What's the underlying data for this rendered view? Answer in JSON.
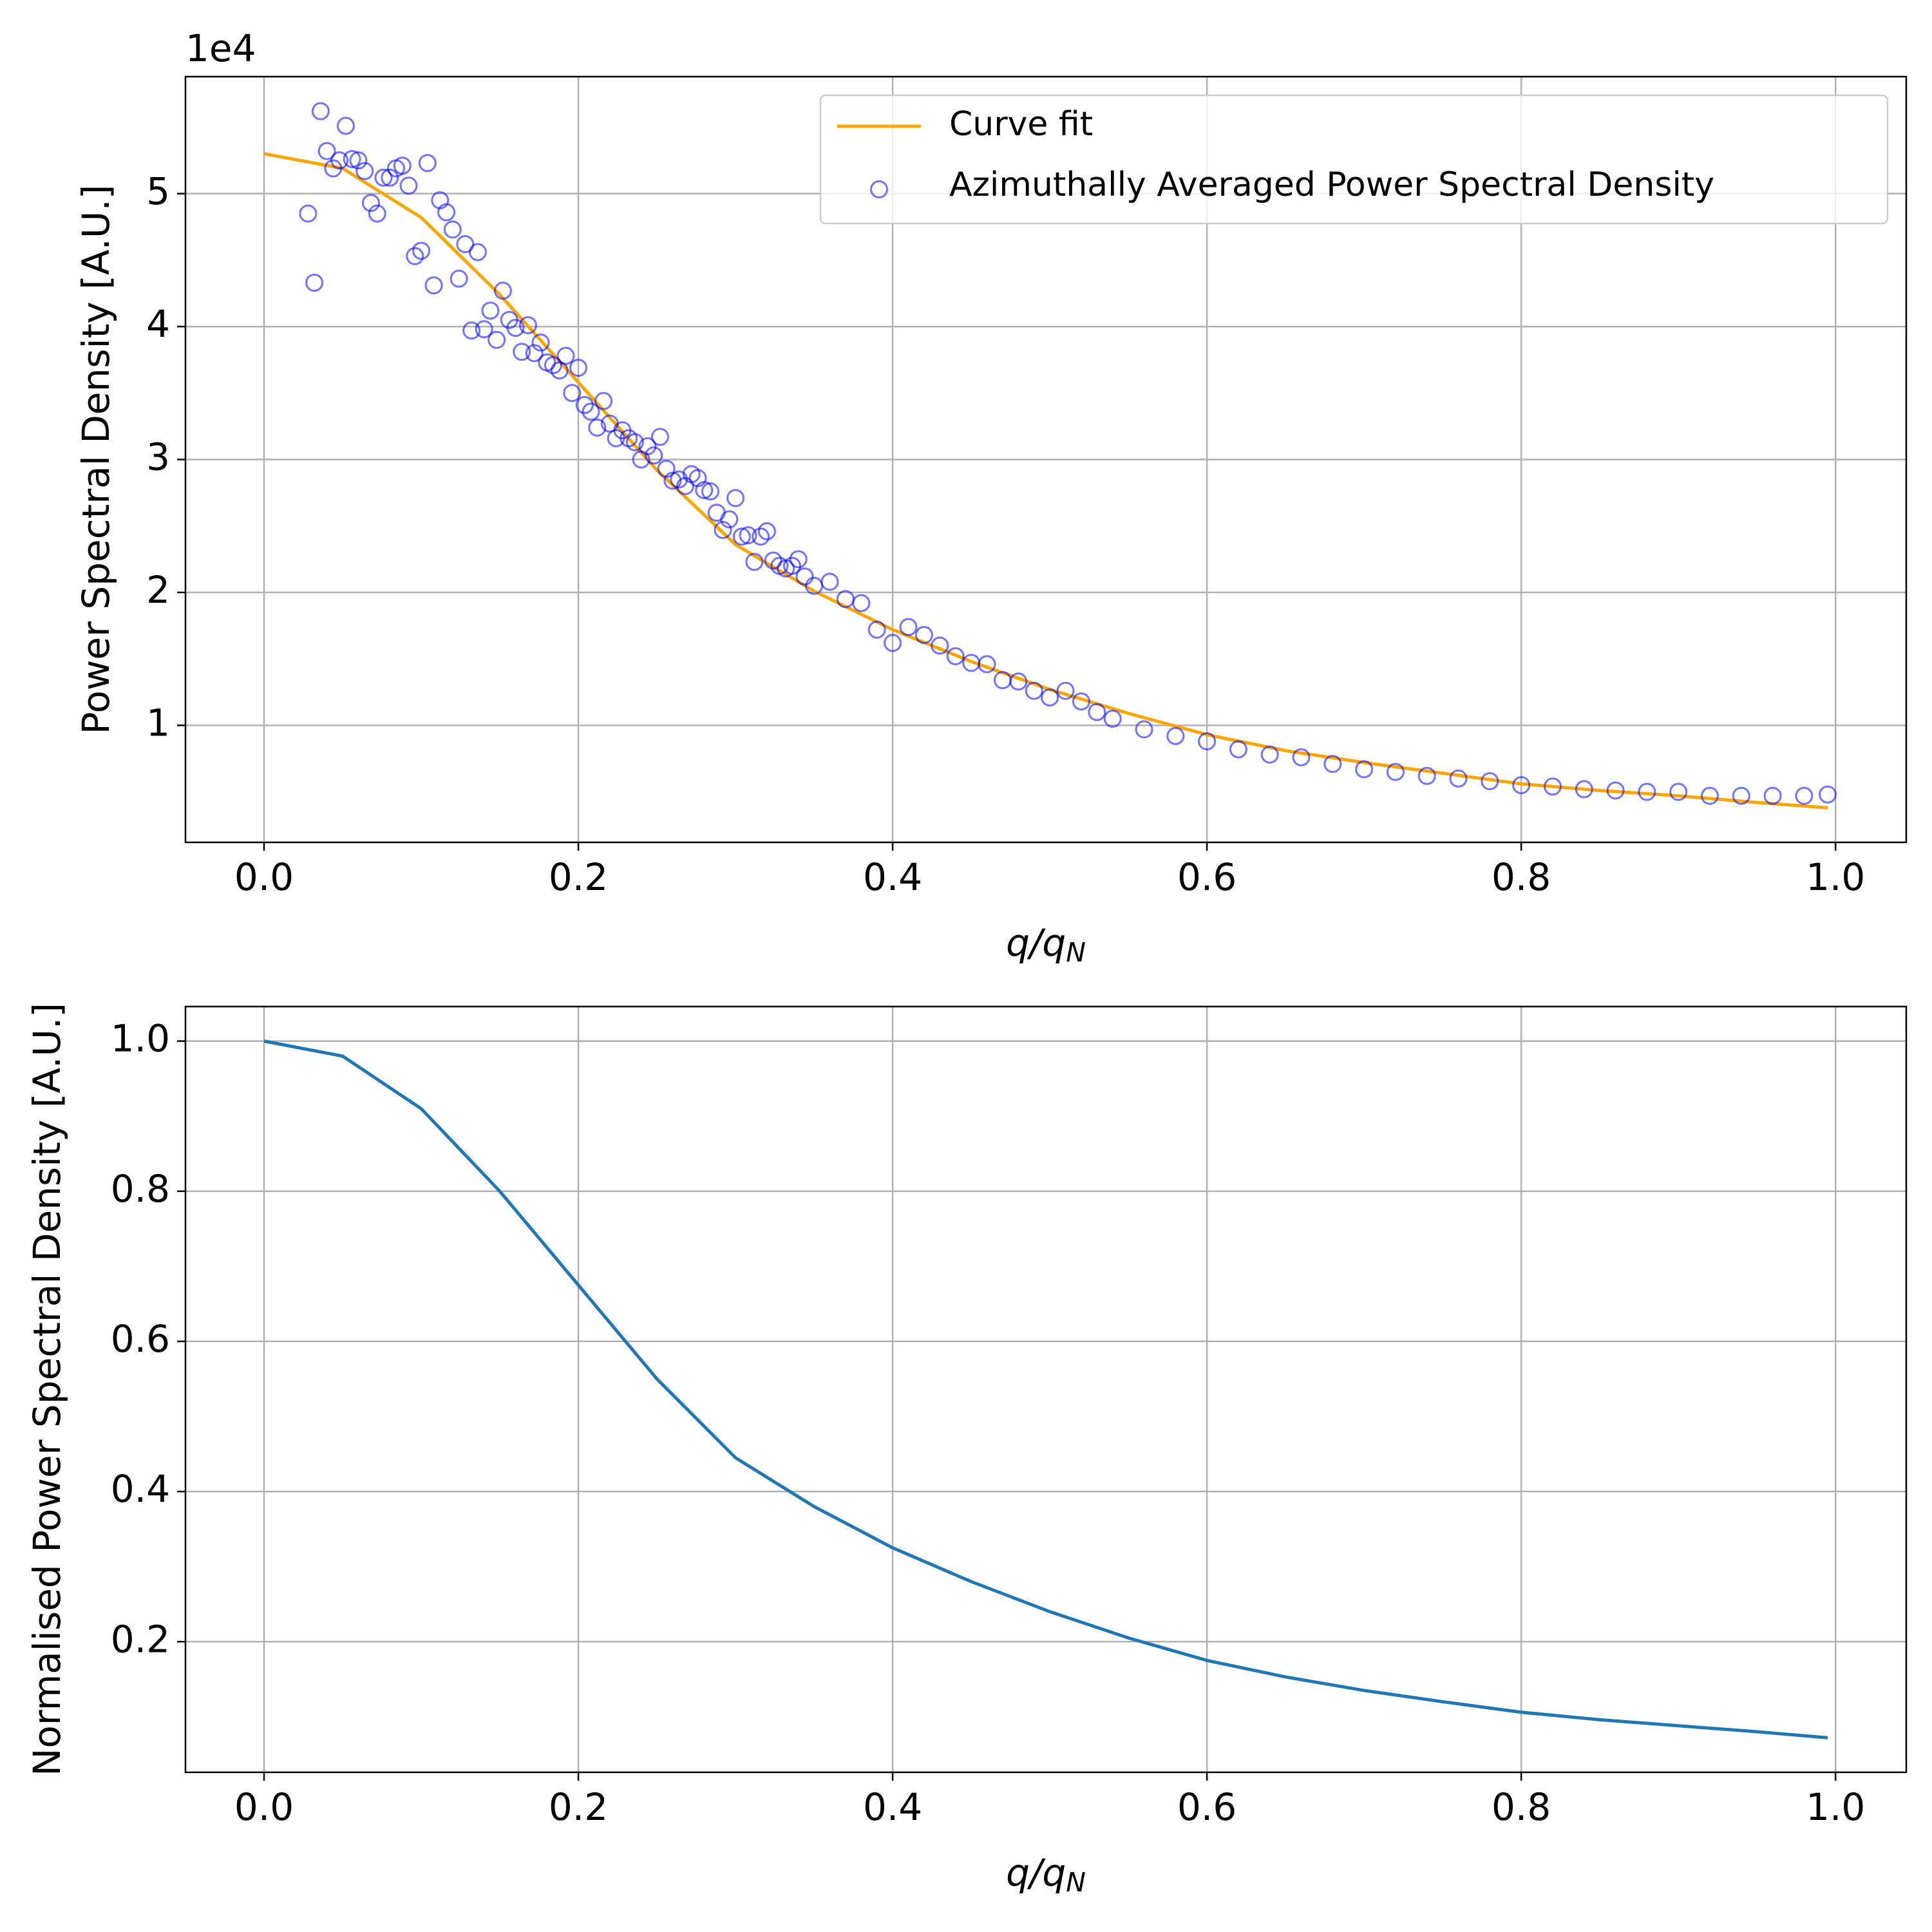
{
  "chart_data": [
    {
      "type": "scatter",
      "offset_text": "1e4",
      "ylabel": "Power Spectral Density [A.U.]",
      "xlabel": "q/q",
      "xlabel_subscript": "N",
      "xlim": [
        -0.05,
        1.045
      ],
      "ylim": [
        0.12,
        5.88
      ],
      "xticks": [
        {
          "value": 0,
          "label": "0.0"
        },
        0.2,
        0.4,
        0.6,
        0.8,
        {
          "value": 1,
          "label": "1.0"
        }
      ],
      "yticks": [
        1,
        2,
        3,
        4,
        5
      ],
      "grid": true,
      "legend": "upper right",
      "series": [
        {
          "name": "Curve fit",
          "type": "line",
          "color": "#ffa500",
          "x": [
            0,
            0.05,
            0.1,
            0.15,
            0.2,
            0.25,
            0.3,
            0.35,
            0.4,
            0.45,
            0.5,
            0.55,
            0.6,
            0.65,
            0.7,
            0.75,
            0.8,
            0.85,
            0.9,
            0.95,
            0.995
          ],
          "values": [
            5.3,
            5.19,
            4.82,
            4.24,
            3.58,
            2.92,
            2.36,
            2.01,
            1.72,
            1.48,
            1.27,
            1.09,
            0.93,
            0.81,
            0.72,
            0.64,
            0.56,
            0.51,
            0.47,
            0.42,
            0.38
          ]
        },
        {
          "name": "Azimuthally Averaged Power Spectral Density",
          "type": "scatter",
          "color": "#0000ff",
          "x": [
            0.028,
            0.032,
            0.036,
            0.04,
            0.044,
            0.048,
            0.052,
            0.056,
            0.06,
            0.064,
            0.068,
            0.072,
            0.076,
            0.08,
            0.084,
            0.088,
            0.092,
            0.096,
            0.1,
            0.104,
            0.108,
            0.112,
            0.116,
            0.12,
            0.124,
            0.128,
            0.132,
            0.136,
            0.14,
            0.144,
            0.148,
            0.152,
            0.156,
            0.16,
            0.164,
            0.168,
            0.172,
            0.176,
            0.18,
            0.184,
            0.188,
            0.192,
            0.196,
            0.2,
            0.204,
            0.208,
            0.212,
            0.216,
            0.22,
            0.224,
            0.228,
            0.232,
            0.236,
            0.24,
            0.244,
            0.248,
            0.252,
            0.256,
            0.26,
            0.264,
            0.268,
            0.272,
            0.276,
            0.28,
            0.284,
            0.288,
            0.292,
            0.296,
            0.3,
            0.304,
            0.308,
            0.312,
            0.316,
            0.32,
            0.324,
            0.328,
            0.332,
            0.336,
            0.34,
            0.344,
            0.35,
            0.36,
            0.37,
            0.38,
            0.39,
            0.4,
            0.41,
            0.42,
            0.43,
            0.44,
            0.45,
            0.46,
            0.47,
            0.48,
            0.49,
            0.5,
            0.51,
            0.52,
            0.53,
            0.54,
            0.56,
            0.58,
            0.6,
            0.62,
            0.64,
            0.66,
            0.68,
            0.7,
            0.72,
            0.74,
            0.76,
            0.78,
            0.8,
            0.82,
            0.84,
            0.86,
            0.88,
            0.9,
            0.92,
            0.94,
            0.96,
            0.98,
            0.995
          ],
          "values": [
            4.85,
            4.33,
            5.62,
            5.32,
            5.19,
            5.25,
            5.51,
            5.26,
            5.25,
            5.17,
            4.93,
            4.85,
            5.12,
            5.12,
            5.19,
            5.21,
            5.06,
            4.53,
            4.57,
            5.23,
            4.31,
            4.95,
            4.86,
            4.73,
            4.36,
            4.62,
            3.97,
            4.56,
            3.98,
            4.12,
            3.9,
            4.27,
            4.05,
            3.99,
            3.81,
            4.01,
            3.8,
            3.88,
            3.73,
            3.71,
            3.67,
            3.78,
            3.5,
            3.69,
            3.41,
            3.36,
            3.24,
            3.44,
            3.27,
            3.16,
            3.22,
            3.16,
            3.13,
            3.0,
            3.1,
            3.03,
            3.17,
            2.93,
            2.84,
            2.85,
            2.8,
            2.89,
            2.86,
            2.77,
            2.76,
            2.6,
            2.47,
            2.55,
            2.71,
            2.42,
            2.43,
            2.23,
            2.42,
            2.46,
            2.24,
            2.2,
            2.18,
            2.2,
            2.25,
            2.12,
            2.05,
            2.08,
            1.95,
            1.92,
            1.72,
            1.62,
            1.74,
            1.68,
            1.6,
            1.52,
            1.47,
            1.46,
            1.34,
            1.33,
            1.26,
            1.21,
            1.26,
            1.18,
            1.1,
            1.05,
            0.97,
            0.92,
            0.88,
            0.82,
            0.78,
            0.76,
            0.71,
            0.67,
            0.65,
            0.62,
            0.6,
            0.58,
            0.55,
            0.54,
            0.52,
            0.51,
            0.5,
            0.5,
            0.47,
            0.47,
            0.47,
            0.47,
            0.48
          ]
        }
      ]
    },
    {
      "type": "line",
      "ylabel": "Normalised Power Spectral Density [A.U.]",
      "xlabel": "q/q",
      "xlabel_subscript": "N",
      "xlim": [
        -0.05,
        1.045
      ],
      "ylim": [
        0.026,
        1.046
      ],
      "xticks": [
        {
          "value": 0,
          "label": "0.0"
        },
        0.2,
        0.4,
        0.6,
        0.8,
        {
          "value": 1,
          "label": "1.0"
        }
      ],
      "yticks": [
        0.2,
        0.4,
        0.6,
        0.8,
        {
          "value": 1,
          "label": "1.0"
        }
      ],
      "grid": true,
      "series": [
        {
          "color": "#1f77b4",
          "x": [
            0,
            0.05,
            0.1,
            0.15,
            0.2,
            0.25,
            0.3,
            0.35,
            0.4,
            0.45,
            0.5,
            0.55,
            0.6,
            0.65,
            0.7,
            0.75,
            0.8,
            0.85,
            0.9,
            0.95,
            0.995
          ],
          "values": [
            1.0,
            0.98,
            0.91,
            0.8,
            0.675,
            0.55,
            0.445,
            0.38,
            0.325,
            0.28,
            0.24,
            0.205,
            0.175,
            0.153,
            0.135,
            0.12,
            0.106,
            0.096,
            0.088,
            0.08,
            0.072
          ]
        }
      ]
    }
  ]
}
